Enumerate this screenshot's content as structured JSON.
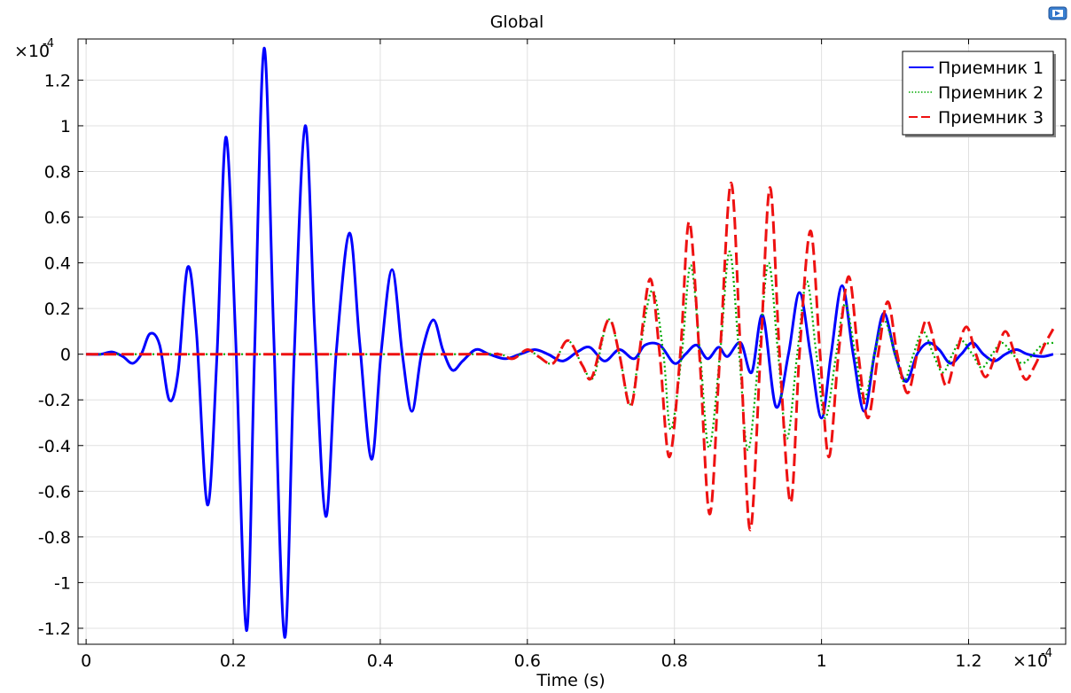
{
  "chart_data": {
    "type": "line",
    "title": "Global",
    "xlabel": "Time (s)",
    "ylabel": "",
    "x_multiplier": "×10",
    "x_multiplier_exp": "-4",
    "y_multiplier": "×10",
    "y_multiplier_exp": "-4",
    "xlim": [
      -0.011,
      1.332
    ],
    "ylim": [
      -1.27,
      1.38
    ],
    "xticks": [
      0,
      0.2,
      0.4,
      0.6,
      0.8,
      1,
      1.2
    ],
    "xtick_labels": [
      "0",
      "0.2",
      "0.4",
      "0.6",
      "0.8",
      "1",
      "1.2"
    ],
    "yticks": [
      -1.2,
      -1,
      -0.8,
      -0.6,
      -0.4,
      -0.2,
      0,
      0.2,
      0.4,
      0.6,
      0.8,
      1,
      1.2
    ],
    "ytick_labels": [
      "-1.2",
      "-1",
      "-0.8",
      "-0.6",
      "-0.4",
      "-0.2",
      "0",
      "0.2",
      "0.4",
      "0.6",
      "0.8",
      "1",
      "1.2"
    ],
    "grid": true,
    "legend_position": "top-right",
    "series": [
      {
        "name": "Приемник 1",
        "color": "#0000ff",
        "style": "solid",
        "points": [
          [
            0,
            0
          ],
          [
            0.02,
            0
          ],
          [
            0.035,
            0.01
          ],
          [
            0.05,
            -0.01
          ],
          [
            0.063,
            -0.04
          ],
          [
            0.075,
            0.0
          ],
          [
            0.087,
            0.09
          ],
          [
            0.1,
            0.04
          ],
          [
            0.113,
            -0.2
          ],
          [
            0.125,
            -0.08
          ],
          [
            0.138,
            0.38
          ],
          [
            0.15,
            0.1
          ],
          [
            0.165,
            -0.66
          ],
          [
            0.178,
            0.0
          ],
          [
            0.19,
            0.95
          ],
          [
            0.203,
            0.1
          ],
          [
            0.218,
            -1.21
          ],
          [
            0.229,
            0.0
          ],
          [
            0.242,
            1.34
          ],
          [
            0.255,
            0.1
          ],
          [
            0.27,
            -1.24
          ],
          [
            0.283,
            0.0
          ],
          [
            0.298,
            1.0
          ],
          [
            0.311,
            0.1
          ],
          [
            0.326,
            -0.71
          ],
          [
            0.34,
            0.0
          ],
          [
            0.358,
            0.53
          ],
          [
            0.372,
            0.05
          ],
          [
            0.388,
            -0.46
          ],
          [
            0.401,
            0.0
          ],
          [
            0.416,
            0.37
          ],
          [
            0.43,
            0.0
          ],
          [
            0.443,
            -0.25
          ],
          [
            0.456,
            0.0
          ],
          [
            0.472,
            0.15
          ],
          [
            0.485,
            0.02
          ],
          [
            0.498,
            -0.07
          ],
          [
            0.512,
            -0.03
          ],
          [
            0.53,
            0.02
          ],
          [
            0.548,
            0.0
          ],
          [
            0.57,
            -0.02
          ],
          [
            0.59,
            0.0
          ],
          [
            0.61,
            0.02
          ],
          [
            0.628,
            0.0
          ],
          [
            0.648,
            -0.03
          ],
          [
            0.668,
            0.01
          ],
          [
            0.685,
            0.03
          ],
          [
            0.705,
            -0.03
          ],
          [
            0.725,
            0.02
          ],
          [
            0.745,
            -0.02
          ],
          [
            0.76,
            0.04
          ],
          [
            0.78,
            0.04
          ],
          [
            0.8,
            -0.04
          ],
          [
            0.815,
            0.0
          ],
          [
            0.83,
            0.04
          ],
          [
            0.845,
            -0.02
          ],
          [
            0.86,
            0.03
          ],
          [
            0.872,
            -0.01
          ],
          [
            0.89,
            0.05
          ],
          [
            0.905,
            -0.08
          ],
          [
            0.92,
            0.17
          ],
          [
            0.938,
            -0.23
          ],
          [
            0.955,
            0.0
          ],
          [
            0.97,
            0.27
          ],
          [
            0.985,
            0.0
          ],
          [
            1.0,
            -0.28
          ],
          [
            1.013,
            0.0
          ],
          [
            1.028,
            0.3
          ],
          [
            1.043,
            0.0
          ],
          [
            1.058,
            -0.25
          ],
          [
            1.072,
            0.0
          ],
          [
            1.085,
            0.18
          ],
          [
            1.1,
            0.0
          ],
          [
            1.115,
            -0.12
          ],
          [
            1.13,
            0.0
          ],
          [
            1.145,
            0.05
          ],
          [
            1.16,
            0.02
          ],
          [
            1.175,
            -0.04
          ],
          [
            1.19,
            0.0
          ],
          [
            1.205,
            0.05
          ],
          [
            1.22,
            0.0
          ],
          [
            1.235,
            -0.03
          ],
          [
            1.25,
            0.0
          ],
          [
            1.265,
            0.02
          ],
          [
            1.28,
            0.0
          ],
          [
            1.3,
            -0.01
          ],
          [
            1.315,
            0.0
          ]
        ]
      },
      {
        "name": "Приемник 2",
        "color": "#00aa00",
        "style": "dotted",
        "points": [
          [
            0,
            0
          ],
          [
            0.5,
            0
          ],
          [
            0.56,
            0.0
          ],
          [
            0.58,
            -0.02
          ],
          [
            0.6,
            0.02
          ],
          [
            0.615,
            -0.01
          ],
          [
            0.635,
            -0.04
          ],
          [
            0.655,
            0.06
          ],
          [
            0.675,
            -0.05
          ],
          [
            0.69,
            -0.1
          ],
          [
            0.71,
            0.15
          ],
          [
            0.725,
            0.0
          ],
          [
            0.74,
            -0.22
          ],
          [
            0.752,
            0.0
          ],
          [
            0.77,
            0.28
          ],
          [
            0.785,
            0.0
          ],
          [
            0.795,
            -0.33
          ],
          [
            0.81,
            0.0
          ],
          [
            0.822,
            0.39
          ],
          [
            0.835,
            0.0
          ],
          [
            0.847,
            -0.41
          ],
          [
            0.862,
            0.0
          ],
          [
            0.875,
            0.45
          ],
          [
            0.888,
            0.0
          ],
          [
            0.9,
            -0.42
          ],
          [
            0.915,
            0.0
          ],
          [
            0.928,
            0.4
          ],
          [
            0.941,
            0.0
          ],
          [
            0.953,
            -0.37
          ],
          [
            0.967,
            0.0
          ],
          [
            0.98,
            0.32
          ],
          [
            0.993,
            0.0
          ],
          [
            1.005,
            -0.28
          ],
          [
            1.02,
            0.0
          ],
          [
            1.032,
            0.22
          ],
          [
            1.046,
            0.0
          ],
          [
            1.058,
            -0.2
          ],
          [
            1.072,
            0.0
          ],
          [
            1.085,
            0.15
          ],
          [
            1.1,
            0.0
          ],
          [
            1.112,
            -0.12
          ],
          [
            1.125,
            0.0
          ],
          [
            1.138,
            0.1
          ],
          [
            1.152,
            0.0
          ],
          [
            1.165,
            -0.08
          ],
          [
            1.178,
            0.0
          ],
          [
            1.19,
            0.06
          ],
          [
            1.205,
            0.0
          ],
          [
            1.218,
            -0.06
          ],
          [
            1.232,
            0.0
          ],
          [
            1.245,
            0.05
          ],
          [
            1.26,
            0.0
          ],
          [
            1.273,
            -0.04
          ],
          [
            1.288,
            0.0
          ],
          [
            1.3,
            0.04
          ],
          [
            1.315,
            0.05
          ]
        ]
      },
      {
        "name": "Приемник 3",
        "color": "#ee1111",
        "style": "dashed",
        "points": [
          [
            0,
            0
          ],
          [
            0.5,
            0
          ],
          [
            0.56,
            0.0
          ],
          [
            0.58,
            -0.02
          ],
          [
            0.6,
            0.02
          ],
          [
            0.615,
            -0.01
          ],
          [
            0.635,
            -0.04
          ],
          [
            0.655,
            0.06
          ],
          [
            0.675,
            -0.05
          ],
          [
            0.688,
            -0.1
          ],
          [
            0.71,
            0.15
          ],
          [
            0.725,
            0.0
          ],
          [
            0.74,
            -0.23
          ],
          [
            0.752,
            0.0
          ],
          [
            0.767,
            0.33
          ],
          [
            0.78,
            0.0
          ],
          [
            0.793,
            -0.45
          ],
          [
            0.808,
            0.0
          ],
          [
            0.82,
            0.58
          ],
          [
            0.834,
            0.0
          ],
          [
            0.848,
            -0.7
          ],
          [
            0.862,
            0.0
          ],
          [
            0.877,
            0.75
          ],
          [
            0.89,
            0.0
          ],
          [
            0.903,
            -0.77
          ],
          [
            0.917,
            0.0
          ],
          [
            0.93,
            0.73
          ],
          [
            0.943,
            0.0
          ],
          [
            0.958,
            -0.65
          ],
          [
            0.97,
            0.0
          ],
          [
            0.985,
            0.54
          ],
          [
            0.998,
            0.0
          ],
          [
            1.01,
            -0.45
          ],
          [
            1.023,
            0.0
          ],
          [
            1.037,
            0.34
          ],
          [
            1.05,
            0.0
          ],
          [
            1.063,
            -0.28
          ],
          [
            1.077,
            0.0
          ],
          [
            1.09,
            0.23
          ],
          [
            1.103,
            0.0
          ],
          [
            1.117,
            -0.17
          ],
          [
            1.13,
            0.0
          ],
          [
            1.143,
            0.15
          ],
          [
            1.157,
            0.0
          ],
          [
            1.17,
            -0.14
          ],
          [
            1.183,
            0.0
          ],
          [
            1.197,
            0.12
          ],
          [
            1.21,
            0.0
          ],
          [
            1.223,
            -0.1
          ],
          [
            1.237,
            0.0
          ],
          [
            1.25,
            0.1
          ],
          [
            1.263,
            0.0
          ],
          [
            1.277,
            -0.11
          ],
          [
            1.29,
            -0.05
          ],
          [
            1.303,
            0.04
          ],
          [
            1.315,
            0.11
          ]
        ]
      }
    ]
  },
  "toolbar": {
    "icon": "export-image-icon"
  }
}
